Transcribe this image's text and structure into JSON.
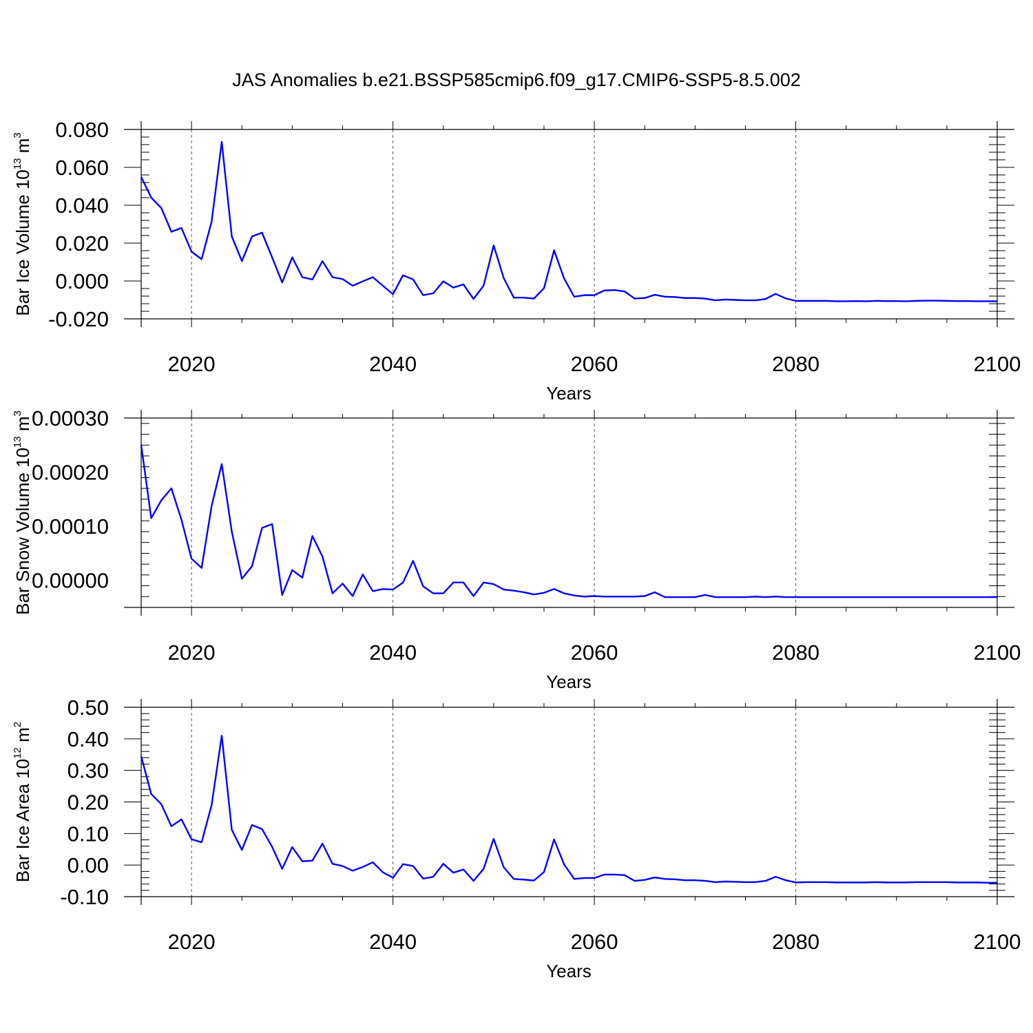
{
  "title": "JAS Anomalies b.e21.BSSP585cmip6.f09_g17.CMIP6-SSP5-8.5.002",
  "colors": {
    "line": "#0000ff",
    "axes": "#000000",
    "grid": "#555555"
  },
  "chart_data": [
    {
      "type": "line",
      "ylabel": {
        "text": "Bar Ice Volume 10",
        "sup": "13",
        "unit": " m",
        "unit_sup": "3"
      },
      "xlabel": "Years",
      "xlim": [
        2015,
        2100
      ],
      "ylim": [
        -0.02,
        0.08
      ],
      "xticks": [
        "2020",
        "2040",
        "2060",
        "2080",
        "2100"
      ],
      "yticks": [
        "0.080",
        "0.060",
        "0.040",
        "0.020",
        "0.000",
        "-0.020"
      ],
      "grid": "vertical dashed at major x ticks",
      "x_start": 2015,
      "series": [
        {
          "values": [
            0.055,
            0.044,
            0.0385,
            0.026,
            0.028,
            0.0155,
            0.0115,
            0.0315,
            0.0735,
            0.0235,
            0.0105,
            0.0235,
            0.0255,
            0.0125,
            -0.0008,
            0.0125,
            0.002,
            0.0008,
            0.0105,
            0.002,
            0.001,
            -0.0025,
            -0.0002,
            0.002,
            -0.0025,
            -0.007,
            0.003,
            0.0008,
            -0.0075,
            -0.0065,
            -0.0002,
            -0.0035,
            -0.0018,
            -0.0095,
            -0.0025,
            0.0188,
            0.0015,
            -0.0088,
            -0.0088,
            -0.0093,
            -0.0038,
            0.0162,
            0.0012,
            -0.0083,
            -0.0075,
            -0.0075,
            -0.005,
            -0.0048,
            -0.0055,
            -0.0093,
            -0.009,
            -0.0073,
            -0.0083,
            -0.0085,
            -0.009,
            -0.009,
            -0.0093,
            -0.0102,
            -0.0098,
            -0.01,
            -0.0102,
            -0.0102,
            -0.0095,
            -0.0068,
            -0.0092,
            -0.0105,
            -0.0105,
            -0.0105,
            -0.0105,
            -0.0107,
            -0.0107,
            -0.0106,
            -0.0107,
            -0.0105,
            -0.0106,
            -0.0106,
            -0.0107,
            -0.0105,
            -0.0104,
            -0.0104,
            -0.0105,
            -0.0106,
            -0.0106,
            -0.0107,
            -0.0107,
            -0.0107
          ]
        }
      ]
    },
    {
      "type": "line",
      "ylabel": {
        "text": "Bar Snow Volume 10",
        "sup": "13",
        "unit": " m",
        "unit_sup": "3"
      },
      "xlabel": "Years",
      "xlim": [
        2015,
        2100
      ],
      "ylim": [
        -5e-05,
        0.0003
      ],
      "xticks": [
        "2020",
        "2040",
        "2060",
        "2080",
        "2100"
      ],
      "yticks": [
        "0.00030",
        "0.00020",
        "0.00010",
        "0.00000"
      ],
      "grid": "vertical dashed at major x ticks",
      "x_start": 2015,
      "series": [
        {
          "values": [
            0.00025,
            0.000115,
            0.000148,
            0.00017,
            0.000112,
            4e-05,
            2.3e-05,
            0.000138,
            0.000215,
            9e-05,
            3e-06,
            2.6e-05,
            9.7e-05,
            0.000104,
            -2.7e-05,
            1.9e-05,
            5e-06,
            8.2e-05,
            4.4e-05,
            -2.4e-05,
            -6e-06,
            -2.9e-05,
            1.1e-05,
            -2e-05,
            -1.6e-05,
            -1.7e-05,
            -4e-06,
            3.6e-05,
            -1.1e-05,
            -2.4e-05,
            -2.4e-05,
            -4e-06,
            -4e-06,
            -2.9e-05,
            -4e-06,
            -7e-06,
            -1.7e-05,
            -1.9e-05,
            -2.2e-05,
            -2.6e-05,
            -2.3e-05,
            -1.6e-05,
            -2.4e-05,
            -2.8e-05,
            -3e-05,
            -2.9e-05,
            -3e-05,
            -3e-05,
            -3e-05,
            -3e-05,
            -2.9e-05,
            -2.2e-05,
            -3.1e-05,
            -3.1e-05,
            -3.1e-05,
            -3.1e-05,
            -2.7e-05,
            -3.1e-05,
            -3.1e-05,
            -3.1e-05,
            -3.1e-05,
            -3e-05,
            -3.1e-05,
            -3e-05,
            -3.1e-05,
            -3.1e-05,
            -3.1e-05,
            -3.1e-05,
            -3.1e-05,
            -3.1e-05,
            -3.1e-05,
            -3.1e-05,
            -3.1e-05,
            -3.1e-05,
            -3.1e-05,
            -3.1e-05,
            -3.1e-05,
            -3.1e-05,
            -3.1e-05,
            -3.1e-05,
            -3.1e-05,
            -3.1e-05,
            -3.1e-05,
            -3.1e-05,
            -3.1e-05,
            -3.1e-05
          ]
        }
      ]
    },
    {
      "type": "line",
      "ylabel": {
        "text": "Bar Ice Area 10",
        "sup": "12",
        "unit": " m",
        "unit_sup": "2"
      },
      "xlabel": "Years",
      "xlim": [
        2015,
        2100
      ],
      "ylim": [
        -0.1,
        0.5
      ],
      "xticks": [
        "2020",
        "2040",
        "2060",
        "2080",
        "2100"
      ],
      "yticks": [
        "0.50",
        "0.40",
        "0.30",
        "0.20",
        "0.10",
        "0.00",
        "-0.10"
      ],
      "grid": "vertical dashed at major x ticks",
      "x_start": 2015,
      "series": [
        {
          "values": [
            0.345,
            0.225,
            0.193,
            0.123,
            0.145,
            0.082,
            0.072,
            0.191,
            0.41,
            0.112,
            0.048,
            0.127,
            0.114,
            0.058,
            -0.012,
            0.057,
            0.012,
            0.014,
            0.068,
            0.004,
            -0.003,
            -0.018,
            -0.006,
            0.009,
            -0.023,
            -0.04,
            0.003,
            -0.003,
            -0.043,
            -0.037,
            0.004,
            -0.024,
            -0.014,
            -0.05,
            -0.012,
            0.083,
            -0.007,
            -0.044,
            -0.046,
            -0.049,
            -0.022,
            0.081,
            0.002,
            -0.044,
            -0.041,
            -0.041,
            -0.03,
            -0.03,
            -0.032,
            -0.05,
            -0.047,
            -0.039,
            -0.044,
            -0.045,
            -0.048,
            -0.048,
            -0.05,
            -0.054,
            -0.052,
            -0.053,
            -0.054,
            -0.054,
            -0.05,
            -0.037,
            -0.048,
            -0.055,
            -0.054,
            -0.054,
            -0.054,
            -0.055,
            -0.055,
            -0.055,
            -0.055,
            -0.054,
            -0.055,
            -0.055,
            -0.055,
            -0.054,
            -0.054,
            -0.054,
            -0.054,
            -0.055,
            -0.055,
            -0.055,
            -0.056,
            -0.056
          ]
        }
      ]
    }
  ]
}
